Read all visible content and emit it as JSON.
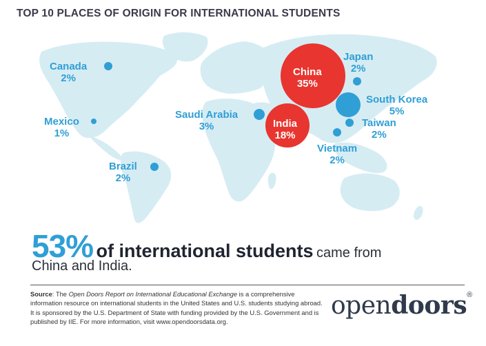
{
  "title": "TOP 10 PLACES OF ORIGIN FOR INTERNATIONAL STUDENTS",
  "colors": {
    "accent": "#2f9fd6",
    "highlight": "#e8352f",
    "land": "#d6ecf3"
  },
  "places": [
    {
      "name": "Canada",
      "pct": "2%",
      "value": 2
    },
    {
      "name": "Mexico",
      "pct": "1%",
      "value": 1
    },
    {
      "name": "Brazil",
      "pct": "2%",
      "value": 2
    },
    {
      "name": "Saudi Arabia",
      "pct": "3%",
      "value": 3
    },
    {
      "name": "India",
      "pct": "18%",
      "value": 18
    },
    {
      "name": "China",
      "pct": "35%",
      "value": 35
    },
    {
      "name": "Japan",
      "pct": "2%",
      "value": 2
    },
    {
      "name": "South Korea",
      "pct": "5%",
      "value": 5
    },
    {
      "name": "Taiwan",
      "pct": "2%",
      "value": 2
    },
    {
      "name": "Vietnam",
      "pct": "2%",
      "value": 2
    }
  ],
  "headline": {
    "big": "53%",
    "bold": "of international students",
    "rest": "came from",
    "line2": "China and India."
  },
  "source": {
    "label": "Source",
    "p1": ": The ",
    "report": "Open Doors Report on International Educational Exchange",
    "p2": " is a comprehensive information resource on international students in the United States and U.S. students studying abroad. It is sponsored by the U.S. Department of State with funding provided by the U.S. Government and is published by IIE. For more information, visit www.opendoorsdata.org."
  },
  "logo": {
    "part1": "open",
    "part2": "doors",
    "mark": "®"
  }
}
